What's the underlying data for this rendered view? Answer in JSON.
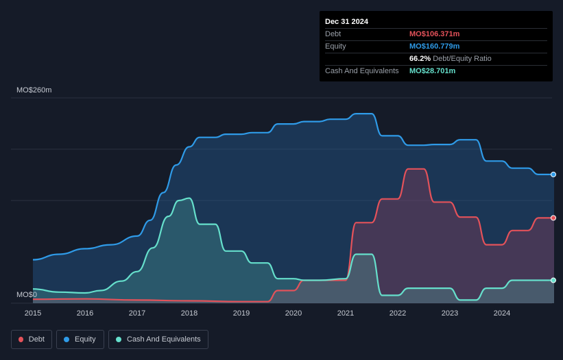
{
  "tooltip": {
    "date": "Dec 31 2024",
    "rows": [
      {
        "label": "Debt",
        "value": "MO$106.371m",
        "color": "#e4525a"
      },
      {
        "label": "Equity",
        "value": "MO$160.779m",
        "color": "#2f9be8"
      },
      {
        "label": "",
        "value": "66.2%",
        "sub": "Debt/Equity Ratio",
        "color": "#ffffff"
      },
      {
        "label": "Cash And Equivalents",
        "value": "MO$28.701m",
        "color": "#66e0cc"
      }
    ]
  },
  "legend": [
    {
      "label": "Debt",
      "color": "#e4525a"
    },
    {
      "label": "Equity",
      "color": "#2f9be8"
    },
    {
      "label": "Cash And Equivalents",
      "color": "#66e0cc"
    }
  ],
  "chart_data": {
    "type": "area",
    "ylabel_top": "MO$260m",
    "ylabel_bottom": "MO$0",
    "ylim": [
      0,
      260
    ],
    "xlim": [
      2015,
      2025.0
    ],
    "x_ticks": [
      2015,
      2016,
      2017,
      2018,
      2019,
      2020,
      2021,
      2022,
      2023,
      2024
    ],
    "x_tick_labels": [
      "2015",
      "2016",
      "2017",
      "2018",
      "2019",
      "2020",
      "2021",
      "2022",
      "2023",
      "2024"
    ],
    "grid": true,
    "series": [
      {
        "name": "Equity",
        "color": "#2f9be8",
        "points": [
          [
            2015,
            55
          ],
          [
            2015.5,
            62
          ],
          [
            2016,
            69
          ],
          [
            2016.5,
            74
          ],
          [
            2017,
            85
          ],
          [
            2017.25,
            105
          ],
          [
            2017.5,
            140
          ],
          [
            2017.75,
            175
          ],
          [
            2018,
            198
          ],
          [
            2018.2,
            210
          ],
          [
            2018.5,
            210
          ],
          [
            2018.7,
            214
          ],
          [
            2019,
            214
          ],
          [
            2019.2,
            216
          ],
          [
            2019.5,
            216
          ],
          [
            2019.7,
            227
          ],
          [
            2020,
            227
          ],
          [
            2020.2,
            230
          ],
          [
            2020.5,
            230
          ],
          [
            2020.7,
            233
          ],
          [
            2021,
            233
          ],
          [
            2021.2,
            240
          ],
          [
            2021.5,
            240
          ],
          [
            2021.7,
            212
          ],
          [
            2022,
            212
          ],
          [
            2022.2,
            200
          ],
          [
            2022.5,
            200
          ],
          [
            2022.7,
            201
          ],
          [
            2023,
            201
          ],
          [
            2023.2,
            207
          ],
          [
            2023.5,
            207
          ],
          [
            2023.7,
            180
          ],
          [
            2024,
            180
          ],
          [
            2024.2,
            171
          ],
          [
            2024.5,
            171
          ],
          [
            2024.7,
            163
          ],
          [
            2025,
            163
          ]
        ]
      },
      {
        "name": "Debt",
        "color": "#e4525a",
        "points": [
          [
            2015,
            5
          ],
          [
            2016,
            5.5
          ],
          [
            2017,
            4
          ],
          [
            2018,
            3
          ],
          [
            2019,
            2
          ],
          [
            2019.5,
            2
          ],
          [
            2019.7,
            16
          ],
          [
            2020,
            16
          ],
          [
            2020.2,
            29
          ],
          [
            2020.5,
            29
          ],
          [
            2021,
            29
          ],
          [
            2021.2,
            102
          ],
          [
            2021.5,
            102
          ],
          [
            2021.7,
            132
          ],
          [
            2022,
            132
          ],
          [
            2022.2,
            170
          ],
          [
            2022.5,
            170
          ],
          [
            2022.7,
            128
          ],
          [
            2023,
            128
          ],
          [
            2023.2,
            109
          ],
          [
            2023.5,
            109
          ],
          [
            2023.7,
            74
          ],
          [
            2024,
            74
          ],
          [
            2024.2,
            92
          ],
          [
            2024.5,
            92
          ],
          [
            2024.7,
            108
          ],
          [
            2025,
            108
          ]
        ]
      },
      {
        "name": "Cash And Equivalents",
        "color": "#66e0cc",
        "points": [
          [
            2015,
            18
          ],
          [
            2015.5,
            14
          ],
          [
            2016,
            13
          ],
          [
            2016.3,
            16
          ],
          [
            2016.7,
            28
          ],
          [
            2017,
            40
          ],
          [
            2017.3,
            70
          ],
          [
            2017.6,
            110
          ],
          [
            2017.8,
            130
          ],
          [
            2018,
            133
          ],
          [
            2018.2,
            100
          ],
          [
            2018.5,
            100
          ],
          [
            2018.7,
            66
          ],
          [
            2019,
            66
          ],
          [
            2019.2,
            51
          ],
          [
            2019.5,
            51
          ],
          [
            2019.7,
            31
          ],
          [
            2020,
            31
          ],
          [
            2020.2,
            29
          ],
          [
            2020.5,
            29
          ],
          [
            2021,
            31
          ],
          [
            2021.2,
            62
          ],
          [
            2021.5,
            62
          ],
          [
            2021.7,
            10
          ],
          [
            2022,
            10
          ],
          [
            2022.2,
            19
          ],
          [
            2022.5,
            19
          ],
          [
            2023,
            19
          ],
          [
            2023.2,
            4
          ],
          [
            2023.5,
            4
          ],
          [
            2023.7,
            19
          ],
          [
            2024,
            19
          ],
          [
            2024.2,
            29
          ],
          [
            2024.5,
            29
          ],
          [
            2025,
            29
          ]
        ]
      }
    ]
  }
}
